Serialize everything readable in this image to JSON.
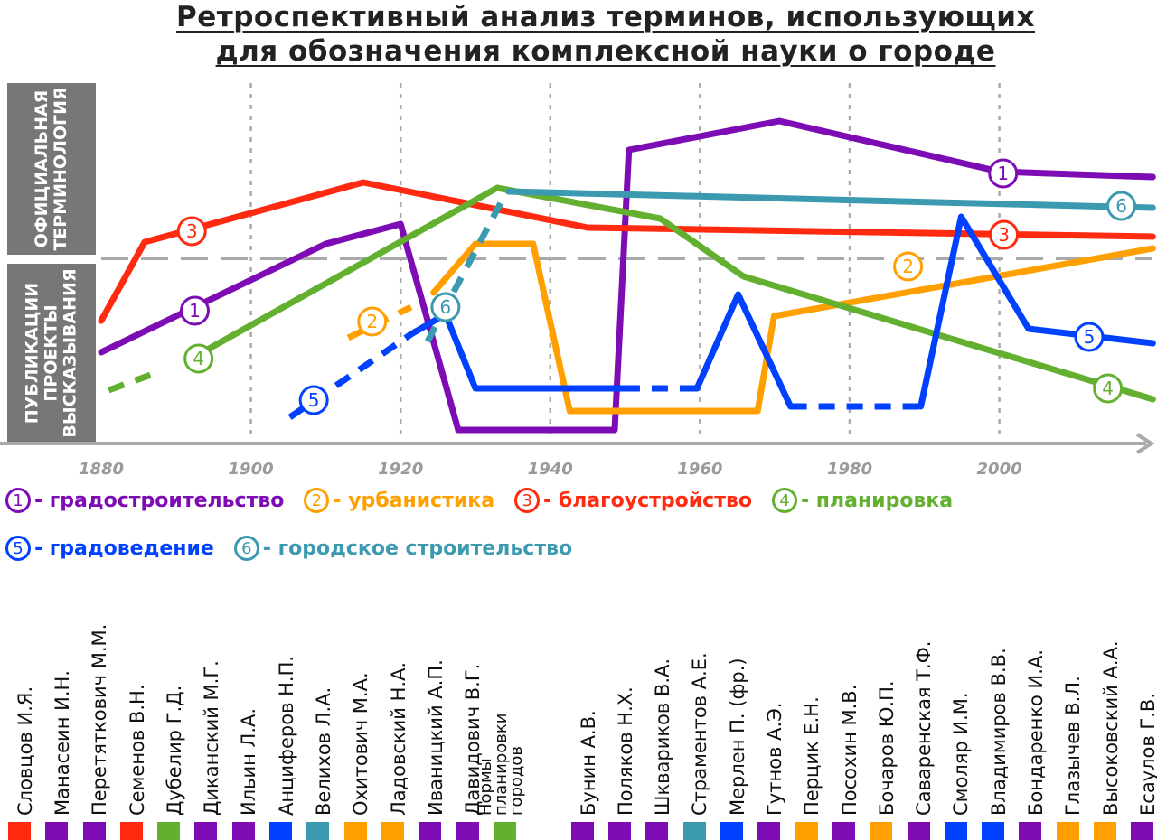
{
  "title": {
    "line1": "Ретроспективный анализ терминов, использующих",
    "line2": "для обозначения комплексной науки о городе"
  },
  "side_labels": {
    "official": "ОФИЦИАЛЬНАЯ\nТЕРМИНОЛОГИЯ",
    "publications": "ПУБЛИКАЦИИ\nПРОЕКТЫ\nВЫСКАЗЫВАНИЯ"
  },
  "chart_data": {
    "type": "line",
    "title": "Ретроспективный анализ терминов, использующих для обозначения комплексной науки о городе",
    "xlabel": "",
    "ylabel": "",
    "x_ticks": [
      "1880",
      "1900",
      "1920",
      "1940",
      "1960",
      "1980",
      "2000"
    ],
    "xlim": [
      1880,
      2020
    ],
    "ylim": [
      0,
      100
    ],
    "y_note": "relative level; above divider = official terminology, below = publications/projects/statements",
    "divider_level": 51,
    "grid": "vertical dotted at decades",
    "legend_position": "bottom",
    "series": [
      {
        "number": "1",
        "name": "градостроительство",
        "color": "#7d0cb4",
        "segments": [
          {
            "style": "solid",
            "points": [
              [
                1880,
                25
              ],
              [
                1910,
                55
              ],
              [
                1920,
                60.5
              ],
              [
                1927.7,
                3.5
              ],
              [
                1948.6,
                3.5
              ],
              [
                1950.5,
                81
              ],
              [
                1970.6,
                89
              ],
              [
                2000,
                75
              ],
              [
                2020.5,
                73.5
              ]
            ]
          }
        ],
        "labels": [
          [
            1892.5,
            36.5
          ],
          [
            2000.5,
            74.5
          ]
        ]
      },
      {
        "number": "2",
        "name": "урбанистика",
        "color": "#ffa000",
        "segments": [
          {
            "style": "dashed",
            "points": [
              [
                1913,
                29
              ],
              [
                1921.4,
                37.5
              ]
            ]
          },
          {
            "style": "solid",
            "points": [
              [
                1924.4,
                41.5
              ],
              [
                1930,
                55
              ],
              [
                1937.7,
                55
              ],
              [
                1942.6,
                8.75
              ],
              [
                1967.7,
                8.75
              ],
              [
                1969.9,
                35
              ],
              [
                2020.5,
                53.75
              ]
            ]
          }
        ],
        "labels": [
          [
            1916.2,
            33.5
          ],
          [
            1987.8,
            48.75
          ]
        ]
      },
      {
        "number": "3",
        "name": "благоустройство",
        "color": "#ff2a10",
        "segments": [
          {
            "style": "solid",
            "points": [
              [
                1880,
                33.75
              ],
              [
                1885.8,
                55.5
              ],
              [
                1915,
                72
              ],
              [
                1945,
                59.5
              ],
              [
                2020.5,
                57
              ]
            ]
          }
        ],
        "labels": [
          [
            1892.1,
            58.5
          ],
          [
            2000.6,
            57.5
          ]
        ]
      },
      {
        "number": "4",
        "name": "планировка",
        "color": "#63b030",
        "segments": [
          {
            "style": "dashed",
            "points": [
              [
                1881,
                14.5
              ],
              [
                1887.6,
                19.5
              ]
            ]
          },
          {
            "style": "solid",
            "points": [
              [
                1891.8,
                23
              ],
              [
                1932.9,
                70.5
              ],
              [
                1954.7,
                62
              ],
              [
                1965.8,
                46
              ],
              [
                2020.5,
                12
              ]
            ]
          }
        ],
        "labels": [
          [
            1893,
            23.25
          ],
          [
            2014.5,
            15
          ]
        ]
      },
      {
        "number": "5",
        "name": "градоведение",
        "color": "#0041ff",
        "segments": [
          {
            "style": "dashed",
            "points": [
              [
                1905.2,
                7
              ],
              [
                1921.4,
                30
              ]
            ]
          },
          {
            "style": "solid",
            "points": [
              [
                1921.4,
                30
              ],
              [
                1926,
                35.5
              ],
              [
                1930,
                15
              ],
              [
                1949.8,
                15
              ]
            ]
          },
          {
            "style": "dashed",
            "points": [
              [
                1949.8,
                15
              ],
              [
                1959.6,
                15
              ]
            ]
          },
          {
            "style": "solid",
            "points": [
              [
                1959.6,
                15
              ],
              [
                1965.1,
                41
              ],
              [
                1972.1,
                10
              ]
            ]
          },
          {
            "style": "dashed",
            "points": [
              [
                1972.1,
                10
              ],
              [
                1989.5,
                10
              ]
            ]
          },
          {
            "style": "solid",
            "points": [
              [
                1989.5,
                10
              ],
              [
                1994.9,
                62.5
              ],
              [
                2003.9,
                31.5
              ],
              [
                2020.5,
                27.5
              ]
            ]
          }
        ],
        "labels": [
          [
            1908.4,
            11.75
          ],
          [
            2012,
            29.25
          ]
        ]
      },
      {
        "number": "6",
        "name": "городское строительство",
        "color": "#3c9ab0",
        "segments": [
          {
            "style": "dashed",
            "points": [
              [
                1923.6,
                28
              ],
              [
                1933.8,
                68
              ]
            ]
          },
          {
            "style": "solid",
            "points": [
              [
                1934.4,
                69.5
              ],
              [
                2020.5,
                65
              ]
            ]
          }
        ],
        "labels": [
          [
            1926,
            37.5
          ],
          [
            2016.3,
            65.5
          ]
        ]
      }
    ]
  },
  "authors": [
    {
      "name": "Словцов И.Я.",
      "series": "3"
    },
    {
      "name": "Манасеин И.Н.",
      "series": "1"
    },
    {
      "name": "Перетяткович М.М.",
      "series": "1"
    },
    {
      "name": "Семенов В.Н.",
      "series": "3"
    },
    {
      "name": "Дубелир Г.Д.",
      "series": "4"
    },
    {
      "name": "Диканский М.Г.",
      "series": "1"
    },
    {
      "name": "Ильин Л.А.",
      "series": "1"
    },
    {
      "name": "Анциферов Н.П.",
      "series": "5"
    },
    {
      "name": "Велихов Л.А.",
      "series": "6"
    },
    {
      "name": "Охитович М.А.",
      "series": "2"
    },
    {
      "name": "Ладовский Н.А.",
      "series": "2"
    },
    {
      "name": "Иваницкий А.П.",
      "series": "1"
    },
    {
      "name": "Давидович В.Г.",
      "series": "1"
    },
    {
      "name": "Нормы\nпланировки\nгородов",
      "series": "4"
    },
    {
      "name": "Бунин А.В.",
      "series": "1"
    },
    {
      "name": "Поляков Н.Х.",
      "series": "1"
    },
    {
      "name": "Шквариков В.А.",
      "series": "1"
    },
    {
      "name": "Страментов А.Е.",
      "series": "6"
    },
    {
      "name": "Мерлен П. (фр.)",
      "series": "5"
    },
    {
      "name": "Гутнов А.Э.",
      "series": "1"
    },
    {
      "name": "Перцик Е.Н.",
      "series": "2"
    },
    {
      "name": "Посохин М.В.",
      "series": "1"
    },
    {
      "name": "Бочаров Ю.П.",
      "series": "2"
    },
    {
      "name": "Саваренская Т.Ф.",
      "series": "1"
    },
    {
      "name": "Смоляр И.М.",
      "series": "5"
    },
    {
      "name": "Владимиров В.В.",
      "series": "5"
    },
    {
      "name": "Бондаренко И.А.",
      "series": "1"
    },
    {
      "name": "Глазычев В.Л.",
      "series": "2"
    },
    {
      "name": "Высоковский А.А.",
      "series": "2"
    },
    {
      "name": "Есаулов Г.В.",
      "series": "1"
    }
  ]
}
